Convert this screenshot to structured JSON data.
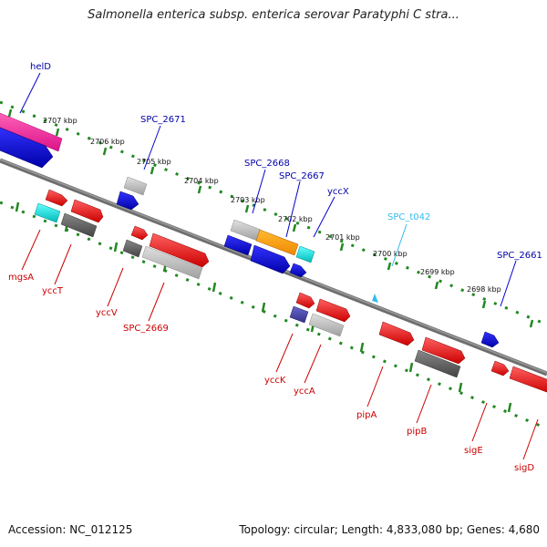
{
  "title": "Salmonella enterica subsp. enterica serovar Paratyphi C stra...",
  "footer": {
    "accession": "Accession: NC_012125",
    "summary": "Topology: circular; Length: 4,833,080 bp; Genes: 4,680"
  },
  "scale_labels": [
    "2707 kbp",
    "2706 kbp",
    "2705 kbp",
    "2704 kbp",
    "2703 kbp",
    "2702 kbp",
    "2701 kbp",
    "2700 kbp",
    "2699 kbp",
    "2698 kbp"
  ],
  "gene_labels": {
    "top": [
      "helD",
      "SPC_2671",
      "SPC_2668",
      "SPC_2667",
      "yccX",
      "SPC_t042",
      "SPC_2661"
    ],
    "bottom": [
      "mgsA",
      "yccT",
      "yccV",
      "SPC_2669",
      "yccK",
      "yccA",
      "pipA",
      "pipB",
      "sigE",
      "sigD"
    ]
  },
  "colors": {
    "gene_top": "#00008b",
    "gene_bottom": "#cc0000",
    "trna": "#22bbdd",
    "ruler": "#228822",
    "backbone": "#808080"
  }
}
